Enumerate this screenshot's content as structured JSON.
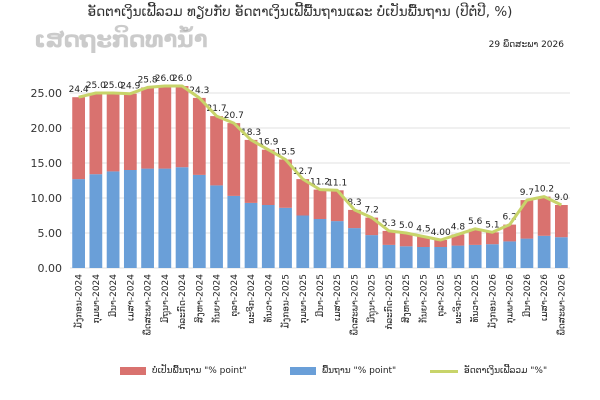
{
  "title": "ອັດຕາເງິນເຟີ້ລວມ ທຽບກັບ ອັດຕາເງິນເຟີ້ພື້ນຖານແລະ ບໍ່ເປັນພື້ນຖານ (ປີຕໍ່ປີ, %)",
  "watermark": "ເສດຖະກິດທານ້ຳ",
  "date_label": "29 ພຶດສະພາ 2026",
  "legend": {
    "noncore": "ບໍ່ເປັນພື້ນຖານ \"% point\"",
    "core": "ພື້ນຖານ \"% point\"",
    "headline": "ອັດຕາເງິນເຟີ້ລວມ \"%\""
  },
  "colors": {
    "core": "#6a9fd8",
    "noncore": "#d9726f",
    "headline": "#c8d46a"
  },
  "chart_data": {
    "type": "bar",
    "stacked": true,
    "categories": [
      "ມັງກອນ-2024",
      "ກຸມພາ-2024",
      "ມີນາ-2024",
      "ເມສາ-2024",
      "ພຶດສະພາ-2024",
      "ມິຖຸນາ-2024",
      "ກໍລະກົດ-2024",
      "ສິງຫາ-2024",
      "ກັນຍາ-2024",
      "ຕຸລາ-2024",
      "ພະຈິກ-2024",
      "ທັນວາ-2024",
      "ມັງກອນ-2025",
      "ກຸມພາ-2025",
      "ມີນາ-2025",
      "ເມສາ-2025",
      "ພຶດສະພາ-2025",
      "ມິຖຸນາ-2025",
      "ກໍລະກົດ-2025",
      "ສິງຫາ-2025",
      "ກັນຍາ-2025",
      "ຕຸລາ-2025",
      "ພະຈິກ-2025",
      "ທັນວາ-2025",
      "ມັງກອນ-2026",
      "ກຸມພາ-2026",
      "ມີນາ-2026",
      "ເມສາ-2026",
      "ພຶດສະພາ-2026"
    ],
    "series": [
      {
        "name": "ພື້ນຖານ \"% point\"",
        "values": [
          12.7,
          13.4,
          13.8,
          14.0,
          14.2,
          14.2,
          14.4,
          13.3,
          11.8,
          10.3,
          9.3,
          9.0,
          8.6,
          7.5,
          7.0,
          6.7,
          5.7,
          4.7,
          3.3,
          3.1,
          3.0,
          3.0,
          3.2,
          3.3,
          3.4,
          3.8,
          4.2,
          4.6,
          4.4
        ]
      },
      {
        "name": "ບໍ່ເປັນພື້ນຖານ \"% point\"",
        "values": [
          11.7,
          11.6,
          11.2,
          10.9,
          11.6,
          11.8,
          11.6,
          11.0,
          9.9,
          10.4,
          9.0,
          7.9,
          6.9,
          5.2,
          4.2,
          4.4,
          2.6,
          2.5,
          2.0,
          1.9,
          1.5,
          1.0,
          1.6,
          2.3,
          1.7,
          2.4,
          5.5,
          5.6,
          4.6
        ]
      }
    ],
    "headline": {
      "name": "ອັດຕາເງິນເຟີ້ລວມ \"%\"",
      "values": [
        24.4,
        25.0,
        25.0,
        24.9,
        25.8,
        26.0,
        26.0,
        24.3,
        21.7,
        20.7,
        18.3,
        16.9,
        15.5,
        12.7,
        11.2,
        11.1,
        8.3,
        7.2,
        5.3,
        5.0,
        4.5,
        4.0,
        4.8,
        5.6,
        5.1,
        6.2,
        9.7,
        10.2,
        9.0
      ],
      "labels": [
        "24.4",
        "25.0",
        "25.0",
        "24.9",
        "25.8",
        "26.0",
        "26.0",
        "24.3",
        "21.7",
        "20.7",
        "18.3",
        "16.9",
        "15.5",
        "12.7",
        "11.2",
        "11.1",
        "8.3",
        "7.2",
        "5.3",
        "5.0",
        "4.5",
        "4.00",
        "4.8",
        "5.6",
        "5.1",
        "6.2",
        "9.7",
        "10.2",
        "9.0"
      ]
    },
    "ylim": [
      0,
      30
    ],
    "yticks": [
      "0.00",
      "5.00",
      "10.00",
      "15.00",
      "20.00",
      "25.00"
    ],
    "grid": true,
    "legend_position": "bottom"
  }
}
